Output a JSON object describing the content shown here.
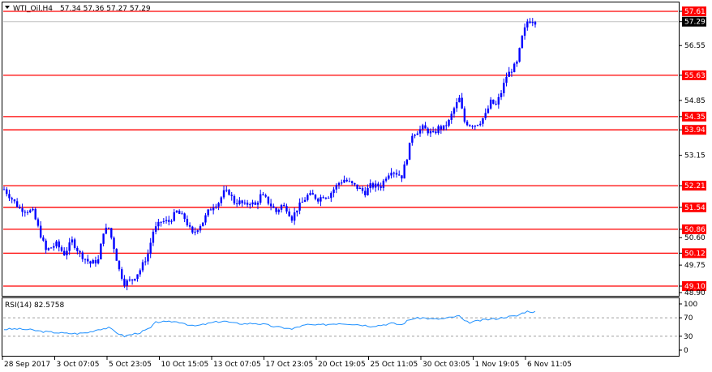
{
  "header": {
    "symbol_label": "WTI_Oil,H4",
    "ohlc": "57.34 57.36 57.27 57.29"
  },
  "indicator": {
    "label": "RSI(14) 82.5758",
    "levels": [
      "100",
      "70",
      "30",
      "0"
    ]
  },
  "colors": {
    "background": "#ffffff",
    "axis": "#000000",
    "candle": "#0000ff",
    "level_line": "#ff0000",
    "current_line": "#c0c0c0",
    "rsi_line": "#1e90ff",
    "rsi_level": "#a0a0a0"
  },
  "chart_data": {
    "type": "candlestick",
    "symbol": "WTI_Oil",
    "timeframe": "H4",
    "y_range": [
      48.9,
      57.9
    ],
    "price_ticks": [
      "57.61",
      "57.29",
      "56.55",
      "55.63",
      "54.85",
      "54.35",
      "53.94",
      "53.15",
      "52.21",
      "51.54",
      "50.86",
      "50.60",
      "50.12",
      "49.75",
      "49.10",
      "48.90"
    ],
    "highlighted_ticks": [
      "57.61",
      "55.63",
      "54.35",
      "53.94",
      "52.21",
      "51.54",
      "50.86",
      "50.12",
      "49.10"
    ],
    "current_price": 57.29,
    "x_labels": [
      "28 Sep 2017",
      "3 Oct 07:05",
      "5 Oct 23:05",
      "10 Oct 15:05",
      "13 Oct 07:05",
      "17 Oct 23:05",
      "20 Oct 19:05",
      "25 Oct 11:05",
      "30 Oct 03:05",
      "1 Nov 19:05",
      "6 Nov 11:05"
    ],
    "levels": [
      57.61,
      55.63,
      54.35,
      53.94,
      52.21,
      51.54,
      50.86,
      50.12,
      49.1
    ],
    "close_path": [
      [
        0,
        52.1
      ],
      [
        6,
        51.5
      ],
      [
        11,
        51.4
      ],
      [
        16,
        50.2
      ],
      [
        20,
        50.4
      ],
      [
        23,
        50.1
      ],
      [
        26,
        50.5
      ],
      [
        29,
        50.1
      ],
      [
        33,
        49.8
      ],
      [
        36,
        49.9
      ],
      [
        38,
        50.8
      ],
      [
        40,
        50.9
      ],
      [
        42,
        50.3
      ],
      [
        44,
        49.6
      ],
      [
        46,
        49.2
      ],
      [
        49,
        49.3
      ],
      [
        52,
        49.6
      ],
      [
        55,
        50.1
      ],
      [
        57,
        50.8
      ],
      [
        60,
        51.1
      ],
      [
        63,
        51.1
      ],
      [
        66,
        51.4
      ],
      [
        69,
        51.2
      ],
      [
        72,
        50.7
      ],
      [
        74,
        50.9
      ],
      [
        76,
        51.1
      ],
      [
        78,
        51.4
      ],
      [
        80,
        51.6
      ],
      [
        82,
        51.7
      ],
      [
        84,
        52.0
      ],
      [
        86,
        52.0
      ],
      [
        88,
        51.7
      ],
      [
        90,
        51.7
      ],
      [
        92,
        51.6
      ],
      [
        94,
        51.7
      ],
      [
        96,
        51.6
      ],
      [
        98,
        51.9
      ],
      [
        100,
        51.8
      ],
      [
        102,
        51.6
      ],
      [
        104,
        51.4
      ],
      [
        106,
        51.6
      ],
      [
        108,
        51.5
      ],
      [
        110,
        51.2
      ],
      [
        112,
        51.5
      ],
      [
        114,
        51.7
      ],
      [
        116,
        51.9
      ],
      [
        118,
        51.9
      ],
      [
        120,
        51.8
      ],
      [
        122,
        51.9
      ],
      [
        124,
        51.9
      ],
      [
        126,
        52.1
      ],
      [
        128,
        52.3
      ],
      [
        130,
        52.4
      ],
      [
        132,
        52.3
      ],
      [
        134,
        52.2
      ],
      [
        136,
        52.1
      ],
      [
        138,
        52.0
      ],
      [
        140,
        52.2
      ],
      [
        142,
        52.2
      ],
      [
        144,
        52.2
      ],
      [
        146,
        52.5
      ],
      [
        148,
        52.7
      ],
      [
        150,
        52.6
      ],
      [
        152,
        52.5
      ],
      [
        154,
        53.1
      ],
      [
        156,
        53.8
      ],
      [
        158,
        53.9
      ],
      [
        160,
        54.0
      ],
      [
        162,
        53.9
      ],
      [
        164,
        53.8
      ],
      [
        166,
        54.0
      ],
      [
        168,
        54.0
      ],
      [
        170,
        54.2
      ],
      [
        172,
        54.6
      ],
      [
        174,
        54.9
      ],
      [
        176,
        54.2
      ],
      [
        178,
        54.1
      ],
      [
        180,
        54.1
      ],
      [
        182,
        54.2
      ],
      [
        184,
        54.4
      ],
      [
        186,
        54.8
      ],
      [
        188,
        54.7
      ],
      [
        190,
        55.1
      ],
      [
        192,
        55.6
      ],
      [
        194,
        55.8
      ],
      [
        196,
        56.0
      ],
      [
        198,
        56.8
      ],
      [
        200,
        57.3
      ],
      [
        202,
        57.35
      ],
      [
        203,
        57.29
      ]
    ],
    "rsi_range": [
      0,
      100
    ],
    "rsi_levels": [
      70,
      30
    ],
    "rsi_last": 82.5758,
    "rsi": [
      [
        0,
        45
      ],
      [
        5,
        46
      ],
      [
        10,
        44
      ],
      [
        15,
        40
      ],
      [
        20,
        38
      ],
      [
        24,
        36
      ],
      [
        28,
        36
      ],
      [
        32,
        38
      ],
      [
        36,
        45
      ],
      [
        40,
        48
      ],
      [
        42,
        42
      ],
      [
        44,
        35
      ],
      [
        46,
        30
      ],
      [
        48,
        33
      ],
      [
        52,
        38
      ],
      [
        56,
        48
      ],
      [
        58,
        60
      ],
      [
        60,
        62
      ],
      [
        62,
        60
      ],
      [
        64,
        62
      ],
      [
        68,
        60
      ],
      [
        72,
        52
      ],
      [
        74,
        53
      ],
      [
        76,
        55
      ],
      [
        80,
        60
      ],
      [
        84,
        63
      ],
      [
        88,
        58
      ],
      [
        92,
        57
      ],
      [
        96,
        58
      ],
      [
        100,
        55
      ],
      [
        104,
        50
      ],
      [
        108,
        48
      ],
      [
        110,
        45
      ],
      [
        112,
        50
      ],
      [
        116,
        55
      ],
      [
        120,
        54
      ],
      [
        124,
        56
      ],
      [
        128,
        58
      ],
      [
        132,
        57
      ],
      [
        136,
        55
      ],
      [
        140,
        52
      ],
      [
        144,
        54
      ],
      [
        148,
        58
      ],
      [
        152,
        55
      ],
      [
        154,
        63
      ],
      [
        156,
        68
      ],
      [
        160,
        70
      ],
      [
        164,
        67
      ],
      [
        168,
        68
      ],
      [
        172,
        72
      ],
      [
        174,
        74
      ],
      [
        176,
        62
      ],
      [
        178,
        60
      ],
      [
        180,
        62
      ],
      [
        184,
        66
      ],
      [
        188,
        68
      ],
      [
        192,
        72
      ],
      [
        196,
        74
      ],
      [
        198,
        80
      ],
      [
        200,
        84
      ],
      [
        202,
        83
      ],
      [
        203,
        82.6
      ]
    ],
    "xlabel": "",
    "ylabel": ""
  }
}
